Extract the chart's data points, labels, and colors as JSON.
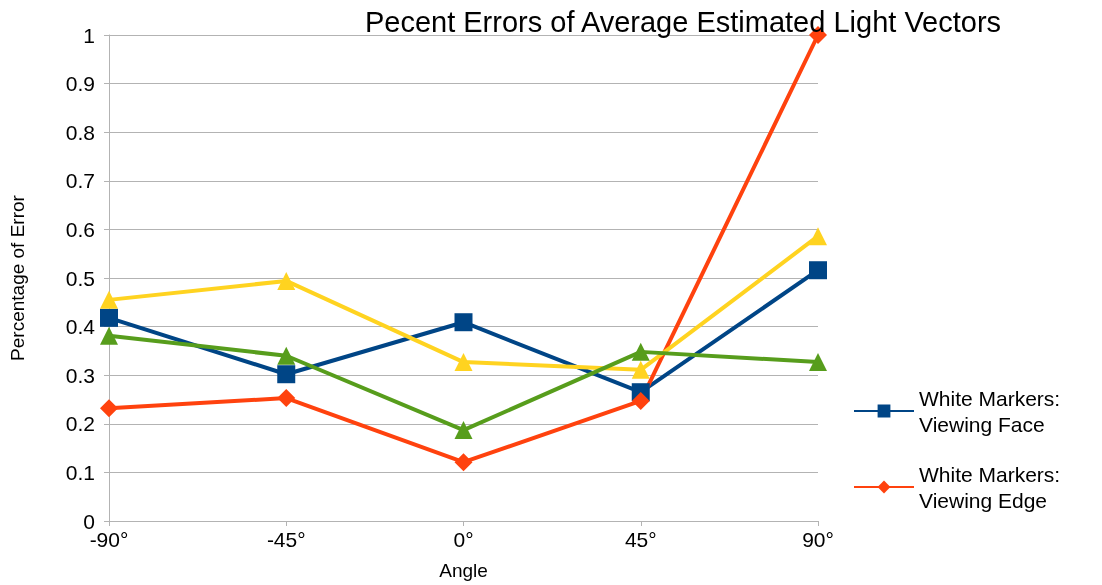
{
  "chart_data": {
    "type": "line",
    "title": "Pecent Errors of Average Estimated Light Vectors",
    "xlabel": "Angle",
    "ylabel": "Percentage of Error",
    "categories": [
      "-90°",
      "-45°",
      "0°",
      "45°",
      "90°"
    ],
    "series": [
      {
        "name": "White Markers: Viewing Face",
        "color": "#004586",
        "marker": "square",
        "values": [
          0.418,
          0.302,
          0.409,
          0.265,
          0.516
        ]
      },
      {
        "name": "White Markers: Viewing Edge",
        "color": "#ff420e",
        "marker": "diamond",
        "values": [
          0.232,
          0.253,
          0.121,
          0.247,
          1.0
        ]
      },
      {
        "color": "#ffd320",
        "marker": "triangle",
        "values": [
          0.455,
          0.494,
          0.327,
          0.311,
          0.586
        ]
      },
      {
        "color": "#579d1c",
        "marker": "triangle",
        "values": [
          0.381,
          0.34,
          0.187,
          0.348,
          0.327
        ]
      }
    ],
    "ylim": [
      0,
      1
    ],
    "yticks": [
      0,
      0.1,
      0.2,
      0.3,
      0.4,
      0.5,
      0.6,
      0.7,
      0.8,
      0.9,
      1
    ],
    "grid": "y",
    "legend": "right"
  }
}
